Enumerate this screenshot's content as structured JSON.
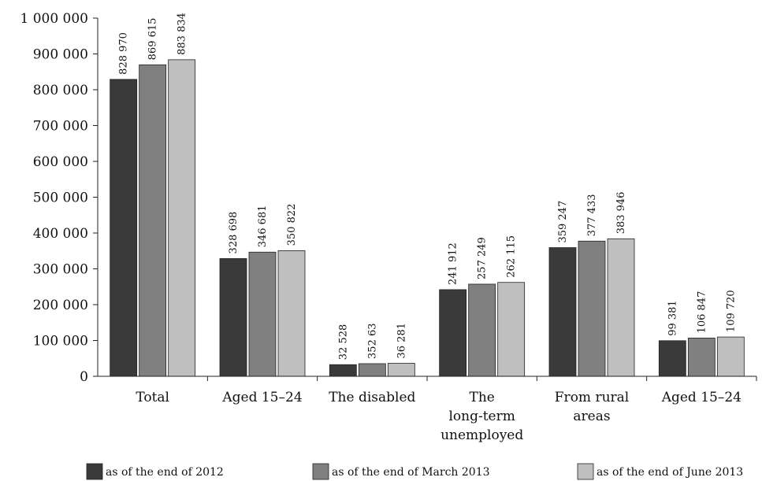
{
  "chart_data": {
    "type": "bar",
    "categories": [
      [
        "Total"
      ],
      [
        "Aged 15–24"
      ],
      [
        "The disabled"
      ],
      [
        "The",
        "long-term",
        "unemployed"
      ],
      [
        "From rural",
        "areas"
      ],
      [
        "Aged 15–24"
      ]
    ],
    "series": [
      {
        "name": "as of the end of 2012",
        "color": "#3a3a3a",
        "values": [
          828970,
          328698,
          32528,
          241912,
          359247,
          99381
        ],
        "labels": [
          "828 970",
          "328 698",
          "32 528",
          "241 912",
          "359 247",
          "99 381"
        ]
      },
      {
        "name": "as of the end of March 2013",
        "color": "#808080",
        "values": [
          869615,
          346681,
          35263,
          257249,
          377433,
          106847
        ],
        "labels": [
          "869 615",
          "346 681",
          "352 63",
          "257 249",
          "377 433",
          "106 847"
        ]
      },
      {
        "name": "as of the end of June 2013",
        "color": "#bfbfbf",
        "values": [
          883834,
          350822,
          36281,
          262115,
          383946,
          109720
        ],
        "labels": [
          "883 834",
          "350 822",
          "36 281",
          "262 115",
          "383 946",
          "109 720"
        ]
      }
    ],
    "y_ticks": [
      0,
      100000,
      200000,
      300000,
      400000,
      500000,
      600000,
      700000,
      800000,
      900000,
      1000000
    ],
    "y_tick_labels": [
      "0",
      "100 000",
      "200 000",
      "300 000",
      "400 000",
      "500 000",
      "600 000",
      "700 000",
      "800 000",
      "900 000",
      "1 000 000"
    ],
    "ylim": [
      0,
      1000000
    ],
    "grid": false,
    "legend_position": "bottom"
  }
}
